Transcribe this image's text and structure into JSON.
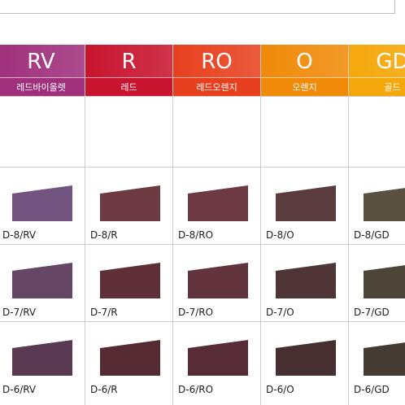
{
  "columns": [
    {
      "code": "RV",
      "name": "레드바이올렛",
      "color": "#a0307c",
      "shades": [
        {
          "label": "D-8/RV",
          "color": "#735481"
        },
        {
          "label": "D-7/RV",
          "color": "#654665"
        },
        {
          "label": "D-6/RV",
          "color": "#5a3a52"
        }
      ]
    },
    {
      "code": "R",
      "name": "레드",
      "color": "#c8142e",
      "shades": [
        {
          "label": "D-8/R",
          "color": "#6e3a42"
        },
        {
          "label": "D-7/R",
          "color": "#5f3038"
        },
        {
          "label": "D-6/R",
          "color": "#562a32"
        }
      ]
    },
    {
      "code": "RO",
      "name": "레드오렌지",
      "color": "#e8401e",
      "shades": [
        {
          "label": "D-8/RO",
          "color": "#6d3a44"
        },
        {
          "label": "D-7/RO",
          "color": "#62343e"
        },
        {
          "label": "D-6/RO",
          "color": "#572c36"
        }
      ]
    },
    {
      "code": "O",
      "name": "오렌지",
      "color": "#f08a08",
      "shades": [
        {
          "label": "D-8/O",
          "color": "#5b3c3e"
        },
        {
          "label": "D-7/O",
          "color": "#4f3536"
        },
        {
          "label": "D-6/O",
          "color": "#472e31"
        }
      ]
    },
    {
      "code": "GD",
      "name": "골드",
      "color": "#f5a80c",
      "shades": [
        {
          "label": "D-8/GD",
          "color": "#5a5040"
        },
        {
          "label": "D-7/GD",
          "color": "#4d4538"
        },
        {
          "label": "D-6/GD",
          "color": "#443c33"
        }
      ]
    }
  ]
}
